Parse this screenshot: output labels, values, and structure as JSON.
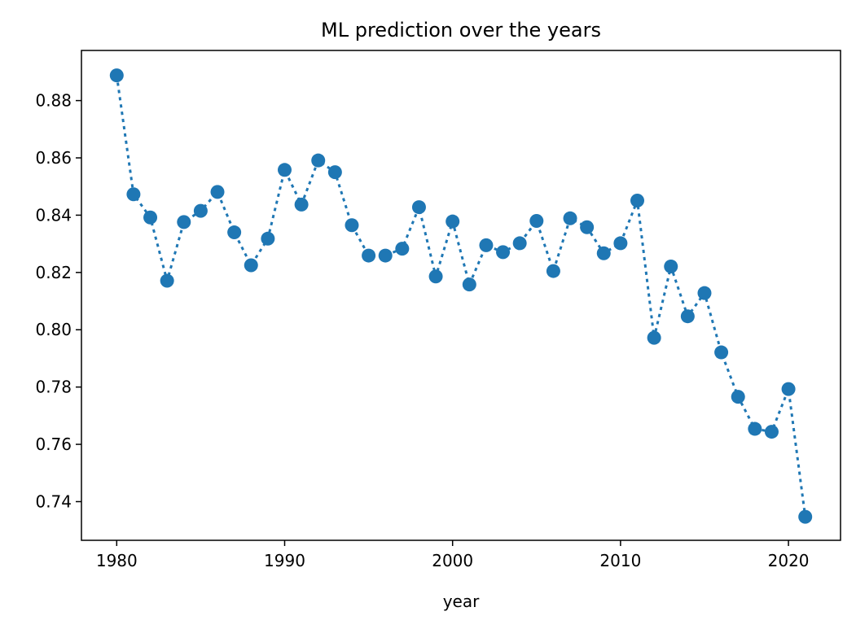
{
  "chart_data": {
    "type": "line",
    "title": "ML prediction over the years",
    "xlabel": "year",
    "ylabel": "",
    "xlim": [
      1977.9,
      2023.1
    ],
    "ylim": [
      0.7265,
      0.8975
    ],
    "x_ticks": [
      1980,
      1990,
      2000,
      2010,
      2020
    ],
    "y_ticks": [
      0.74,
      0.76,
      0.78,
      0.8,
      0.82,
      0.84,
      0.86,
      0.88
    ],
    "y_tick_labels": [
      "0.74",
      "0.76",
      "0.78",
      "0.80",
      "0.82",
      "0.84",
      "0.86",
      "0.88"
    ],
    "grid": false,
    "line_style": "dotted",
    "marker": "circle",
    "color": "#1f77b4",
    "series": [
      {
        "x": [
          1980,
          1981,
          1982,
          1983,
          1984,
          1985,
          1986,
          1987,
          1988,
          1989,
          1990,
          1991,
          1992,
          1993,
          1994,
          1995,
          1996,
          1997,
          1998,
          1999,
          2000,
          2001,
          2002,
          2003,
          2004,
          2005,
          2006,
          2007,
          2008,
          2009,
          2010,
          2011,
          2012,
          2013,
          2014,
          2015,
          2016,
          2017,
          2018,
          2019,
          2020,
          2021
        ],
        "values": [
          0.8888,
          0.8473,
          0.8392,
          0.8171,
          0.8376,
          0.8415,
          0.8481,
          0.834,
          0.8225,
          0.8318,
          0.8558,
          0.8437,
          0.8591,
          0.855,
          0.8365,
          0.8259,
          0.8259,
          0.8283,
          0.8428,
          0.8186,
          0.8378,
          0.8158,
          0.8295,
          0.8271,
          0.8302,
          0.838,
          0.8205,
          0.8389,
          0.8358,
          0.8267,
          0.8302,
          0.8451,
          0.7972,
          0.8221,
          0.8047,
          0.8128,
          0.7921,
          0.7766,
          0.7654,
          0.7644,
          0.7793,
          0.7347
        ]
      }
    ]
  }
}
